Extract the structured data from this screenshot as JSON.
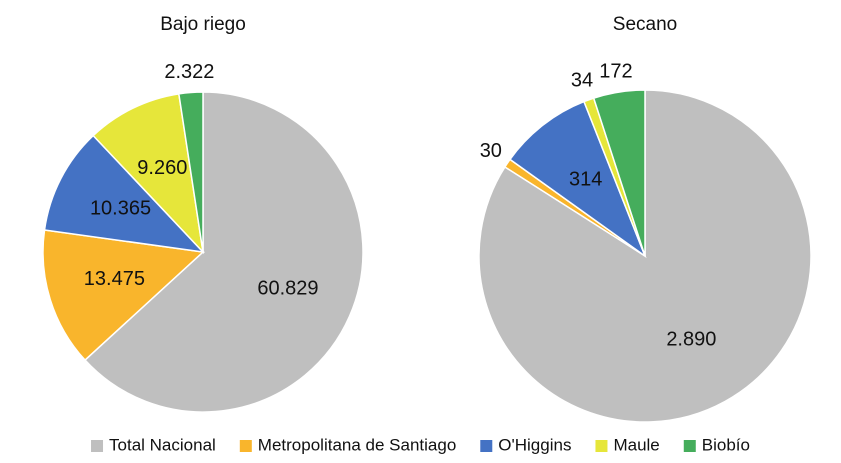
{
  "chart_data": [
    {
      "type": "pie",
      "title": "Bajo riego",
      "values": [
        60829,
        13475,
        10365,
        9260,
        2322
      ],
      "value_labels": [
        "60.829",
        "13.475",
        "10.365",
        "9.260",
        "2.322"
      ]
    },
    {
      "type": "pie",
      "title": "Secano",
      "values": [
        2890,
        30,
        314,
        34,
        172
      ],
      "value_labels": [
        "2.890",
        "30",
        "314",
        "34",
        "172"
      ]
    }
  ],
  "legend": {
    "categories": [
      "Total Nacional",
      "Metropolitana de Santiago",
      "O'Higgins",
      "Maule",
      "Biobío"
    ],
    "colors": [
      "#bfbfbf",
      "#f9b52c",
      "#4472c4",
      "#e6e63a",
      "#45ad5c"
    ]
  }
}
